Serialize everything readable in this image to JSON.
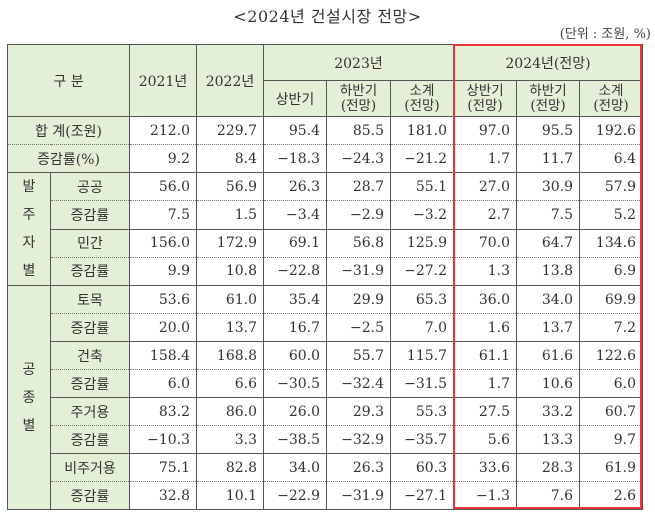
{
  "title": "<2024년 건설시장 전망>",
  "unit": "(단위 : 조원, %)",
  "highlight_color": "#e8333a",
  "header_bg": "#e3efd6",
  "header": {
    "category": "구 분",
    "y2021": "2021년",
    "y2022": "2022년",
    "y2023": "2023년",
    "y2024": "2024년(전망)",
    "sub": {
      "h1_2023": "상반기",
      "h2_2023": "하반기\n(전망)",
      "sum_2023": "소계\n(전망)",
      "h1_2024": "상반기\n(전망)",
      "h2_2024": "하반기\n(전망)",
      "sum_2024": "소계\n(전망)"
    }
  },
  "groups": {
    "order": "발\n주\n자\n별",
    "type": "공\n종\n별"
  },
  "rows": [
    {
      "label": "합 계(조원)",
      "v": [
        "212.0",
        "229.7",
        "95.4",
        "85.5",
        "181.0",
        "97.0",
        "95.5",
        "192.6"
      ]
    },
    {
      "label": "증감률(%)",
      "v": [
        "9.2",
        "8.4",
        "−18.3",
        "−24.3",
        "−21.2",
        "1.7",
        "11.7",
        "6.4"
      ]
    },
    {
      "label": "공공",
      "v": [
        "56.0",
        "56.9",
        "26.3",
        "28.7",
        "55.1",
        "27.0",
        "30.9",
        "57.9"
      ]
    },
    {
      "label": "증감률",
      "v": [
        "7.5",
        "1.5",
        "−3.4",
        "−2.9",
        "−3.2",
        "2.7",
        "7.5",
        "5.2"
      ]
    },
    {
      "label": "민간",
      "v": [
        "156.0",
        "172.9",
        "69.1",
        "56.8",
        "125.9",
        "70.0",
        "64.7",
        "134.6"
      ]
    },
    {
      "label": "증감률",
      "v": [
        "9.9",
        "10.8",
        "−22.8",
        "−31.9",
        "−27.2",
        "1.3",
        "13.8",
        "6.9"
      ]
    },
    {
      "label": "토목",
      "v": [
        "53.6",
        "61.0",
        "35.4",
        "29.9",
        "65.3",
        "36.0",
        "34.0",
        "69.9"
      ]
    },
    {
      "label": "증감률",
      "v": [
        "20.0",
        "13.7",
        "16.7",
        "−2.5",
        "7.0",
        "1.6",
        "13.7",
        "7.2"
      ]
    },
    {
      "label": "건축",
      "v": [
        "158.4",
        "168.8",
        "60.0",
        "55.7",
        "115.7",
        "61.1",
        "61.6",
        "122.6"
      ]
    },
    {
      "label": "증감률",
      "v": [
        "6.0",
        "6.6",
        "−30.5",
        "−32.4",
        "−31.5",
        "1.7",
        "10.6",
        "6.0"
      ]
    },
    {
      "label": "주거용",
      "v": [
        "83.2",
        "86.0",
        "26.0",
        "29.3",
        "55.3",
        "27.5",
        "33.2",
        "60.7"
      ]
    },
    {
      "label": "증감률",
      "v": [
        "−10.3",
        "3.3",
        "−38.5",
        "−32.9",
        "−35.7",
        "5.6",
        "13.3",
        "9.7"
      ]
    },
    {
      "label": "비주거용",
      "v": [
        "75.1",
        "82.8",
        "34.0",
        "26.3",
        "60.3",
        "33.6",
        "28.3",
        "61.9"
      ]
    },
    {
      "label": "증감률",
      "v": [
        "32.8",
        "10.1",
        "−22.9",
        "−31.9",
        "−27.1",
        "−1.3",
        "7.6",
        "2.6"
      ]
    }
  ]
}
